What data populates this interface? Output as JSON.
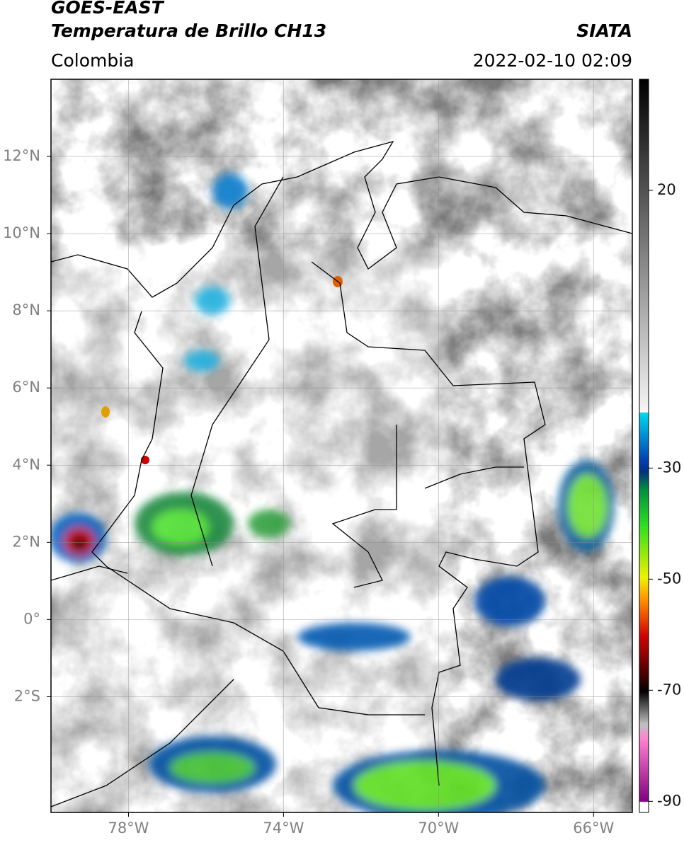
{
  "header": {
    "title": "GOES-EAST",
    "product": "Temperatura de Brillo CH13",
    "source": "SIATA",
    "region": "Colombia",
    "datetime": "2022-02-10 02:09"
  },
  "map": {
    "xlim": [
      -80,
      -65
    ],
    "ylim": [
      -5,
      14
    ],
    "xticks": [
      {
        "value": -78,
        "label": "78°W"
      },
      {
        "value": -74,
        "label": "74°W"
      },
      {
        "value": -70,
        "label": "70°W"
      },
      {
        "value": -66,
        "label": "66°W"
      }
    ],
    "yticks": [
      {
        "value": 12,
        "label": "12°N"
      },
      {
        "value": 10,
        "label": "10°N"
      },
      {
        "value": 8,
        "label": "8°N"
      },
      {
        "value": 6,
        "label": "6°N"
      },
      {
        "value": 4,
        "label": "4°N"
      },
      {
        "value": 2,
        "label": "2°N"
      },
      {
        "value": 0,
        "label": "0°"
      },
      {
        "value": -2,
        "label": "2°S"
      }
    ],
    "grid": true
  },
  "colorbar": {
    "lim": [
      -92,
      40
    ],
    "ticks": [
      20,
      -30,
      -50,
      -70,
      -90
    ]
  }
}
